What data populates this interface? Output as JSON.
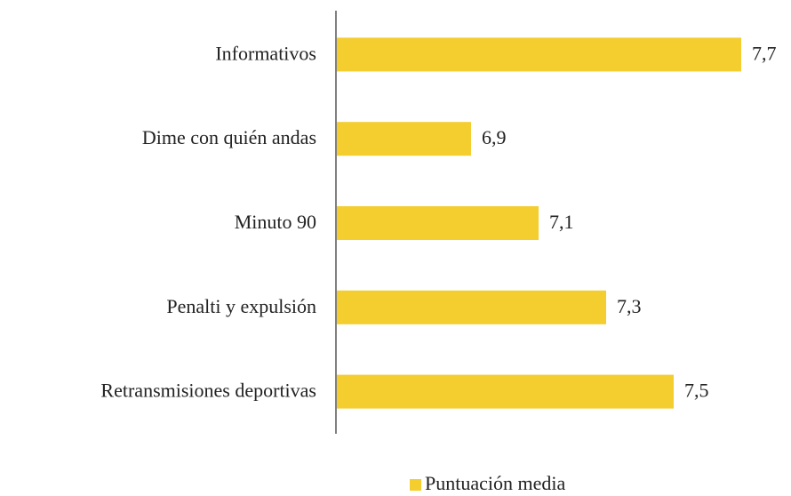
{
  "chart_data": {
    "type": "bar",
    "orientation": "horizontal",
    "categories": [
      "Informativos",
      "Dime con quién andas",
      "Minuto 90",
      "Penalti y expulsión",
      "Retransmisiones deportivas"
    ],
    "series": [
      {
        "name": "Puntuación media",
        "color": "#f4cd2f",
        "values": [
          7.7,
          6.9,
          7.1,
          7.3,
          7.5
        ],
        "value_labels": [
          "7,7",
          "6,9",
          "7,1",
          "7,3",
          "7,5"
        ]
      }
    ],
    "xlim": [
      6.5,
      7.8
    ],
    "legend": "bottom"
  }
}
